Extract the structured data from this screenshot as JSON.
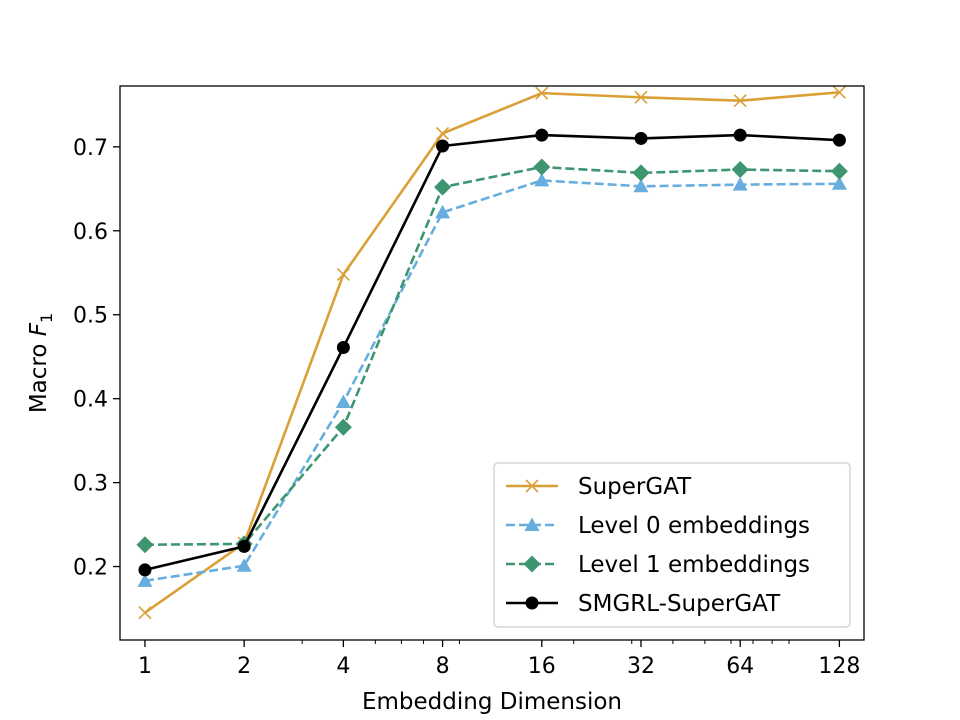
{
  "chart_data": {
    "type": "line",
    "title": "",
    "xlabel": "Embedding Dimension",
    "ylabel_main": "Macro ",
    "ylabel_var": "F",
    "ylabel_sub": "1",
    "x_scale": "log2",
    "categories": [
      "1",
      "2",
      "4",
      "8",
      "16",
      "32",
      "64",
      "128"
    ],
    "x": [
      1,
      2,
      4,
      8,
      16,
      32,
      64,
      128
    ],
    "xlim": [
      0.84,
      152
    ],
    "ylim": [
      0.1125,
      0.7725
    ],
    "yticks": [
      0.2,
      0.3,
      0.4,
      0.5,
      0.6,
      0.7
    ],
    "ytick_labels": [
      "0.2",
      "0.3",
      "0.4",
      "0.5",
      "0.6",
      "0.7"
    ],
    "legend_position": "lower-right",
    "series": [
      {
        "name": "SuperGAT",
        "color": "#DAA036",
        "marker": "x",
        "dash": "solid",
        "values": [
          0.145,
          0.228,
          0.548,
          0.716,
          0.764,
          0.759,
          0.755,
          0.765
        ]
      },
      {
        "name": "Level 0 embeddings",
        "color": "#67AEDF",
        "marker": "triangle",
        "dash": "dashed",
        "values": [
          0.183,
          0.201,
          0.396,
          0.622,
          0.66,
          0.653,
          0.655,
          0.656
        ]
      },
      {
        "name": "Level 1 embeddings",
        "color": "#3D9670",
        "marker": "diamond",
        "dash": "dashed",
        "values": [
          0.226,
          0.227,
          0.366,
          0.652,
          0.676,
          0.669,
          0.673,
          0.671
        ]
      },
      {
        "name": "SMGRL-SuperGAT",
        "color": "#000000",
        "marker": "circle",
        "dash": "solid",
        "values": [
          0.196,
          0.224,
          0.461,
          0.701,
          0.714,
          0.71,
          0.714,
          0.708
        ]
      }
    ]
  }
}
